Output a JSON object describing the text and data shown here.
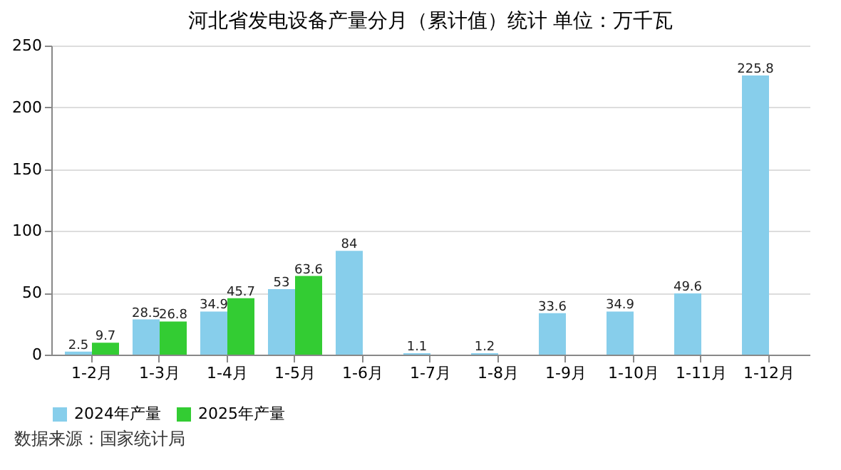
{
  "chart_data": {
    "type": "bar",
    "title": "河北省发电设备产量分月（累计值）统计 单位：万千瓦",
    "categories": [
      "1-2月",
      "1-3月",
      "1-4月",
      "1-5月",
      "1-6月",
      "1-7月",
      "1-8月",
      "1-9月",
      "1-10月",
      "1-11月",
      "1-12月"
    ],
    "series": [
      {
        "name": "2024年产量",
        "color": "#87ceeb",
        "values": [
          2.5,
          28.5,
          34.9,
          53,
          84,
          1.1,
          1.2,
          33.6,
          34.9,
          49.6,
          225.8
        ]
      },
      {
        "name": "2025年产量",
        "color": "#33cc33",
        "values": [
          9.7,
          26.8,
          45.7,
          63.6,
          null,
          null,
          null,
          null,
          null,
          null,
          null
        ]
      }
    ],
    "ylim": [
      0,
      250
    ],
    "yticks": [
      0,
      50,
      100,
      150,
      200,
      250
    ],
    "grid": "y",
    "legend": "bottom",
    "data_labels": true,
    "annotations": [
      "数据来源：国家统计局"
    ]
  }
}
